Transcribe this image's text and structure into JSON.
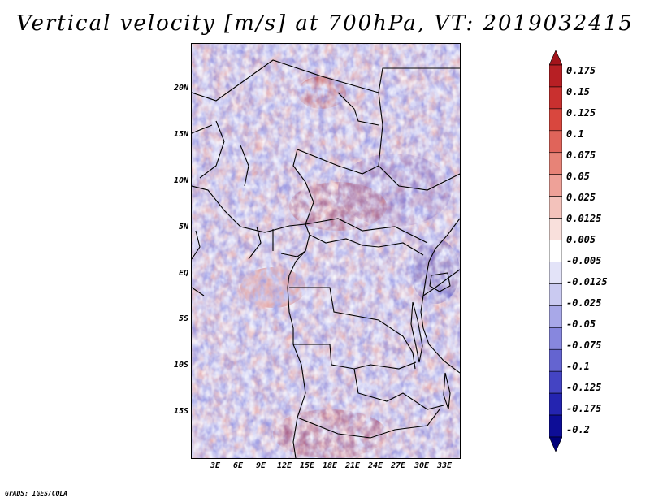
{
  "title": "Vertical velocity [m/s] at 700hPa, VT: 2019032415",
  "credit": "GrADS: IGES/COLA",
  "lat_labels": [
    "20N",
    "15N",
    "10N",
    "5N",
    "EQ",
    "5S",
    "10S",
    "15S"
  ],
  "lon_labels": [
    "3E",
    "6E",
    "9E",
    "12E",
    "15E",
    "18E",
    "21E",
    "24E",
    "27E",
    "30E",
    "33E"
  ],
  "colorbar": {
    "levels": [
      "0.175",
      "0.15",
      "0.125",
      "0.1",
      "0.075",
      "0.05",
      "0.025",
      "0.0125",
      "0.005",
      "-0.005",
      "-0.0125",
      "-0.025",
      "-0.05",
      "-0.075",
      "-0.1",
      "-0.125",
      "-0.175",
      "-0.2"
    ],
    "colors": [
      "#a3141b",
      "#b71f24",
      "#c9302f",
      "#d9473e",
      "#e0645a",
      "#e78377",
      "#eea198",
      "#f3c2bb",
      "#f9e0dc",
      "#ffffff",
      "#e3e3f8",
      "#cacaf1",
      "#a8a8e8",
      "#8787de",
      "#6464d0",
      "#4444c3",
      "#2424b0",
      "#0d0d97",
      "#00007a"
    ]
  }
}
